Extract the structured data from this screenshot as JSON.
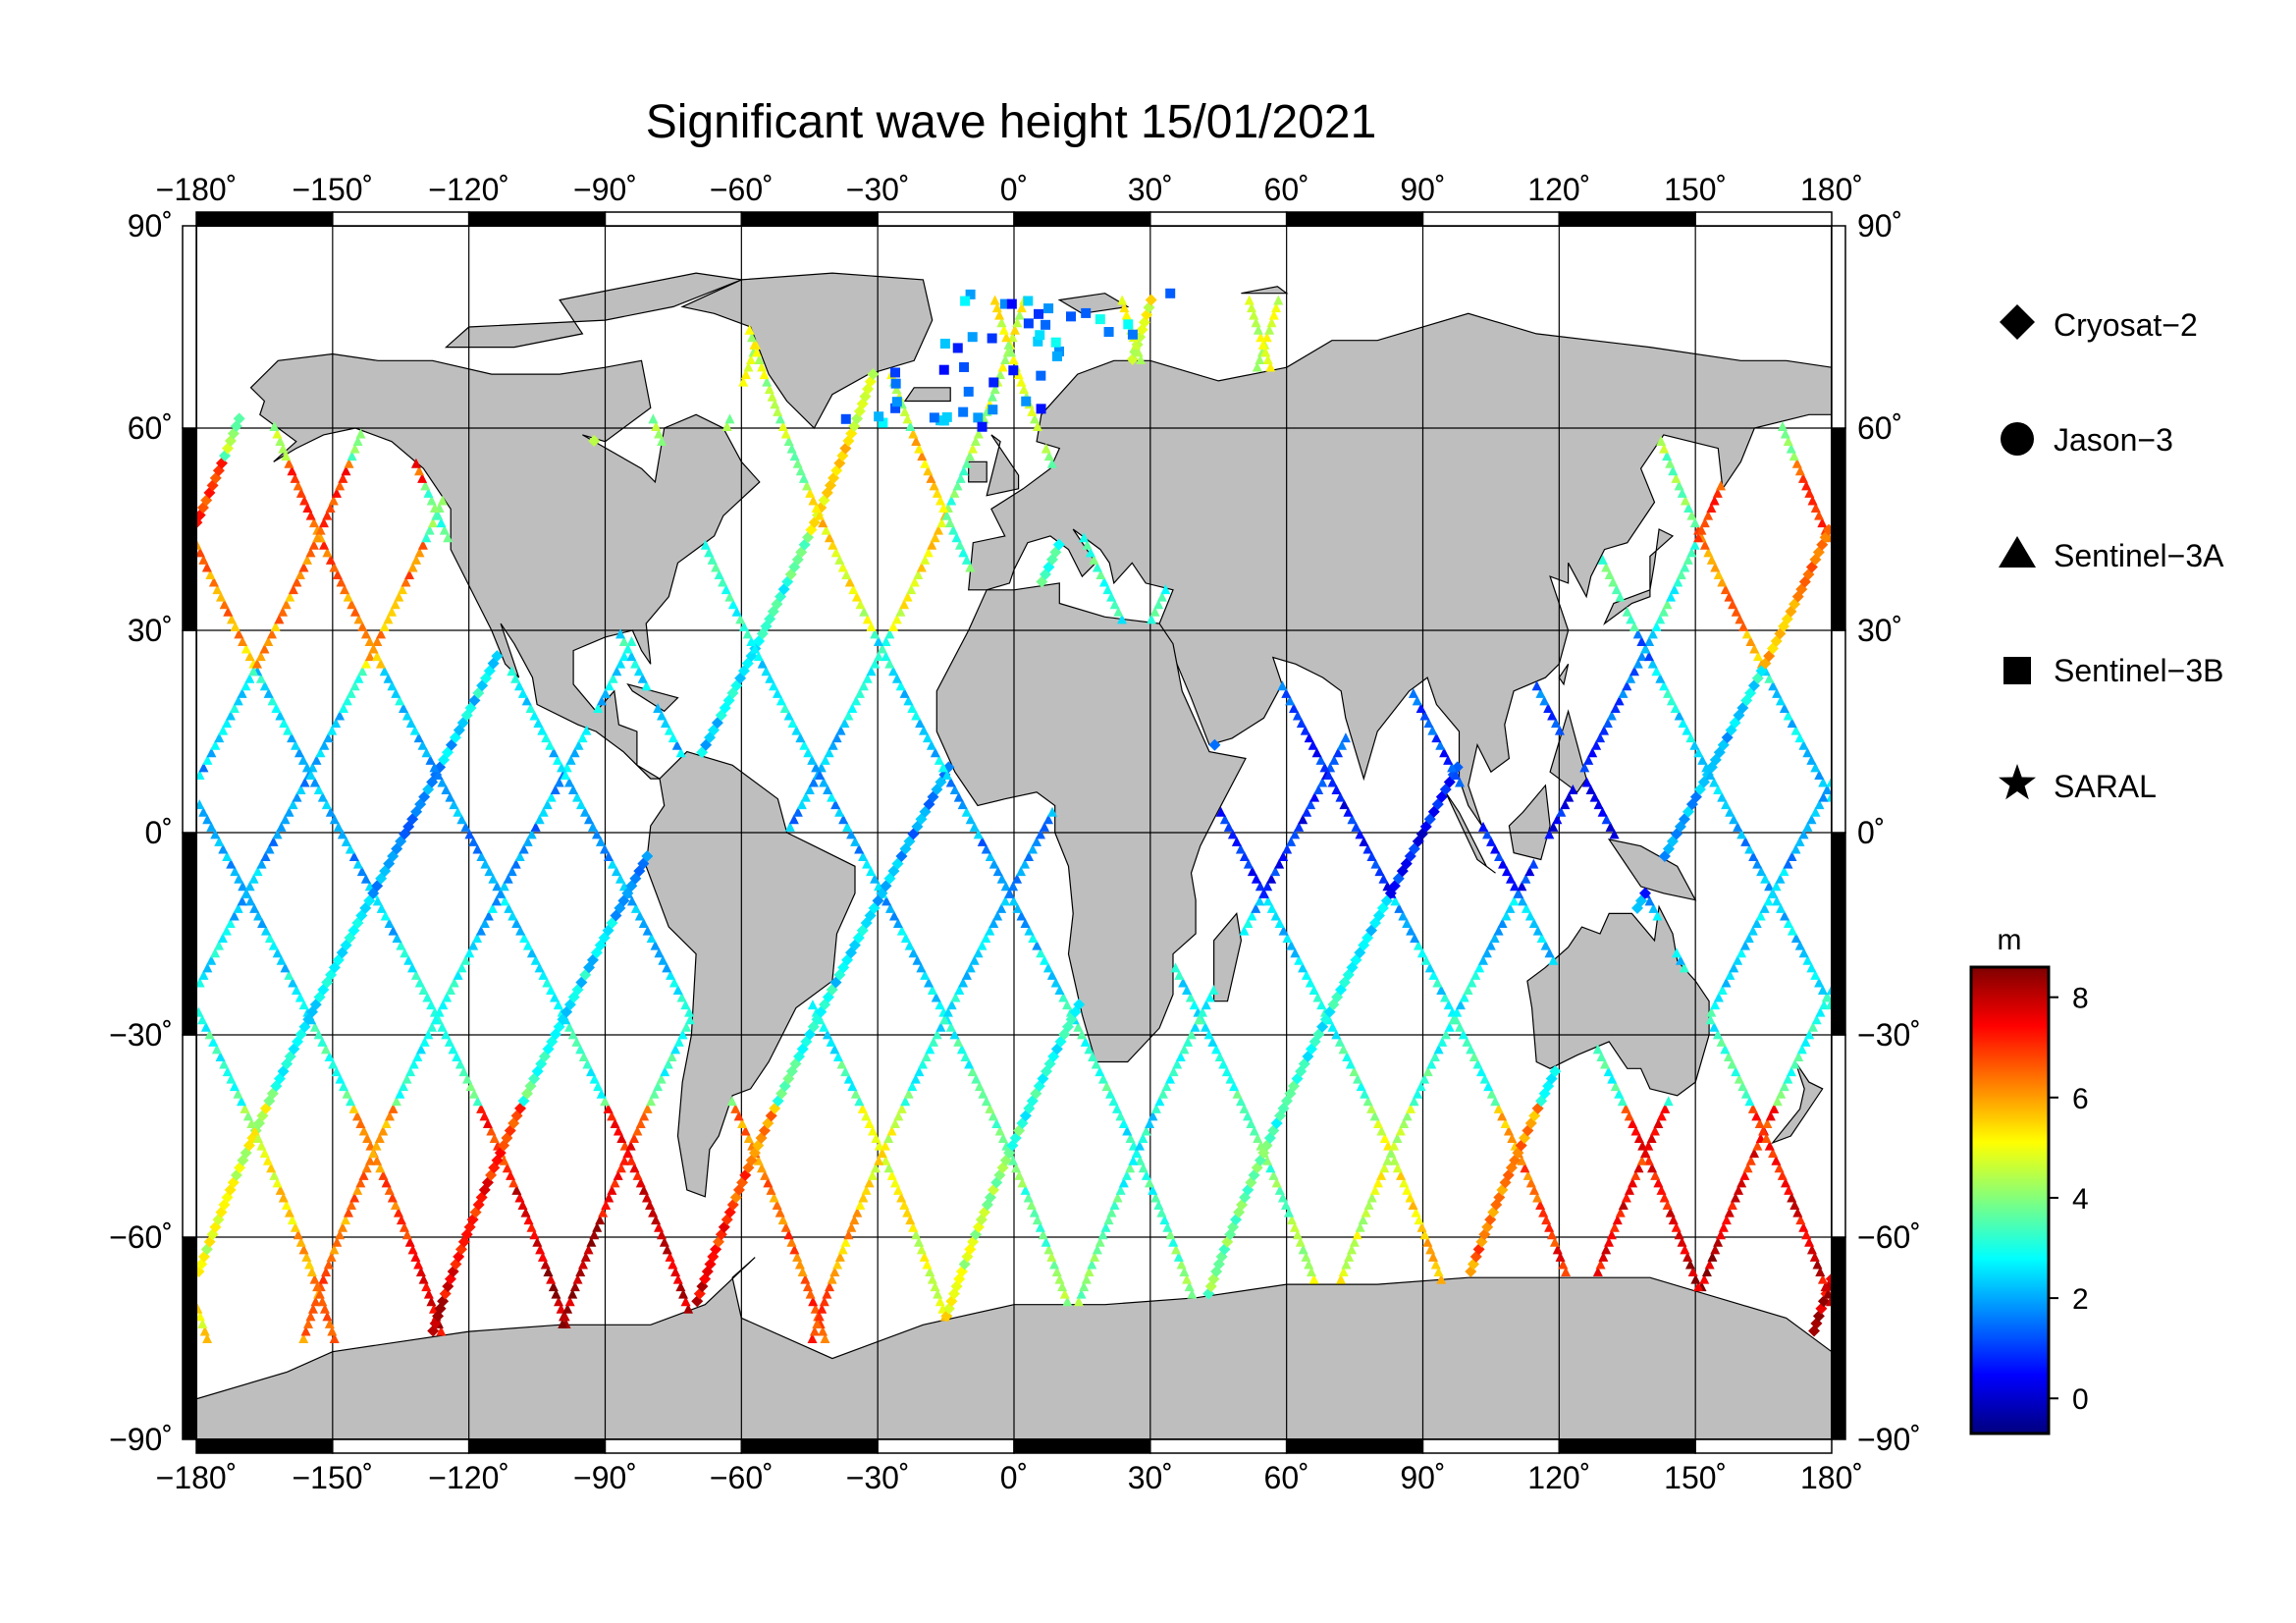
{
  "title": "Significant wave height 15/01/2021",
  "map": {
    "projection": "equirectangular",
    "lon_range": [
      -180,
      180
    ],
    "lat_range": [
      -90,
      90
    ],
    "lon_ticks": [
      -180,
      -150,
      -120,
      -90,
      -60,
      -30,
      0,
      30,
      60,
      90,
      120,
      150,
      180
    ],
    "lat_ticks": [
      -90,
      -60,
      -30,
      0,
      30,
      60,
      90
    ],
    "lon_tick_labels": [
      "−180˚",
      "−150˚",
      "−120˚",
      "−90˚",
      "−60˚",
      "−30˚",
      "0˚",
      "30˚",
      "60˚",
      "90˚",
      "120˚",
      "150˚",
      "180˚"
    ],
    "lat_tick_labels": [
      "−90˚",
      "−60˚",
      "−30˚",
      "0˚",
      "30˚",
      "60˚",
      "90˚"
    ],
    "grid": true,
    "land_color": "#bebebe",
    "ocean_color": "#ffffff"
  },
  "legend": {
    "position": "right",
    "items": [
      {
        "label": "Cryosat−2",
        "marker": "diamond"
      },
      {
        "label": "Jason−3",
        "marker": "circle"
      },
      {
        "label": "Sentinel−3A",
        "marker": "triangle"
      },
      {
        "label": "Sentinel−3B",
        "marker": "square"
      },
      {
        "label": "SARAL",
        "marker": "star"
      }
    ]
  },
  "colorbar": {
    "unit": "m",
    "min": -0.7,
    "max": 8.6,
    "ticks": [
      0,
      2,
      4,
      6,
      8
    ],
    "tick_labels": [
      "0",
      "2",
      "4",
      "6",
      "8"
    ],
    "colormap": "jet",
    "stops": [
      "#00007f",
      "#0000ff",
      "#007fff",
      "#00ffff",
      "#7fff7f",
      "#ffff00",
      "#ff7f00",
      "#ff0000",
      "#7f0000"
    ]
  }
}
